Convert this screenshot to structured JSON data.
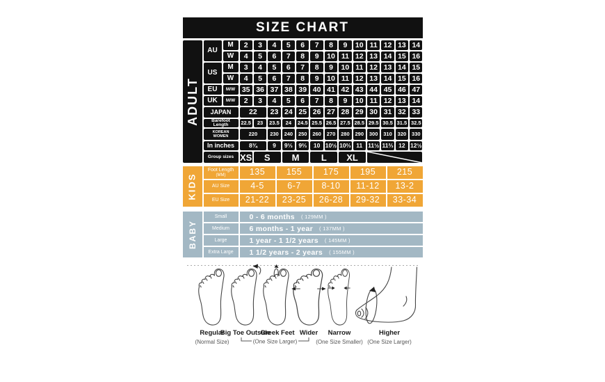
{
  "title": "SIZE CHART",
  "colors": {
    "table-black": "#111111",
    "kids-orange": "#f0a636",
    "baby-blue": "#a3b8c4"
  },
  "adult": {
    "section_label": "ADULT",
    "labels": {
      "au": "AU",
      "us": "US",
      "eu": "EU",
      "uk": "UK",
      "m": "M",
      "w": "W",
      "mw": "M/W",
      "japan": "JAPAN",
      "barefoot": "Barefoot Length",
      "korean_line1": "KOREAN",
      "korean_line2": "WOMEN",
      "inches": "In inches",
      "groups": "Group sizes"
    },
    "au_m": [
      "2",
      "3",
      "4",
      "5",
      "6",
      "7",
      "8",
      "9",
      "10",
      "11",
      "12",
      "13",
      "14"
    ],
    "au_w": [
      "4",
      "5",
      "6",
      "7",
      "8",
      "9",
      "10",
      "11",
      "12",
      "13",
      "14",
      "15",
      "16"
    ],
    "us_m": [
      "3",
      "4",
      "5",
      "6",
      "7",
      "8",
      "9",
      "10",
      "11",
      "12",
      "13",
      "14",
      "15"
    ],
    "us_w": [
      "4",
      "5",
      "6",
      "7",
      "8",
      "9",
      "10",
      "11",
      "12",
      "13",
      "14",
      "15",
      "16"
    ],
    "eu": [
      "35",
      "36",
      "37",
      "38",
      "39",
      "40",
      "41",
      "42",
      "43",
      "44",
      "45",
      "46",
      "47"
    ],
    "uk": [
      "2",
      "3",
      "4",
      "5",
      "6",
      "7",
      "8",
      "9",
      "10",
      "11",
      "12",
      "13",
      "14"
    ],
    "japan": [
      {
        "v": "22",
        "span": 2
      },
      "23",
      "24",
      "25",
      "26",
      "27",
      "28",
      "29",
      "30",
      "31",
      "32",
      "33"
    ],
    "barefoot": [
      "22.5",
      "23",
      "23.5",
      "24",
      "24.5",
      "25.5",
      "26.5",
      "27.5",
      "28.5",
      "29.5",
      "30.5",
      "31.5",
      "32.5"
    ],
    "korean": [
      {
        "v": "220",
        "span": 2
      },
      "230",
      "240",
      "250",
      "260",
      "270",
      "280",
      "290",
      "300",
      "310",
      "320",
      "330"
    ],
    "inches": [
      {
        "v": "8¾",
        "span": 2
      },
      "9",
      "9⅓",
      "9⅔",
      "10",
      "10½",
      "10⅔",
      "11",
      "11½",
      "11⅔",
      "12",
      "12½"
    ],
    "groups": [
      {
        "v": "XS",
        "span": 1
      },
      {
        "v": "S",
        "span": 2
      },
      {
        "v": "M",
        "span": 2
      },
      {
        "v": "L",
        "span": 2
      },
      {
        "v": "XL",
        "span": 2
      }
    ]
  },
  "kids": {
    "section_label": "KIDS",
    "row_labels": [
      {
        "label": "Foot Length",
        "sub": "(MM)"
      },
      {
        "label": "AU Size"
      },
      {
        "label": "EU Size"
      }
    ],
    "foot_length": [
      "135",
      "155",
      "175",
      "195",
      "215"
    ],
    "au_size": [
      "4-5",
      "6-7",
      "8-10",
      "11-12",
      "13-2"
    ],
    "eu_size": [
      "21-22",
      "23-25",
      "26-28",
      "29-32",
      "33-34"
    ]
  },
  "baby": {
    "section_label": "BABY",
    "rows": [
      {
        "label": "Small",
        "text": "0 - 6 months",
        "mm": "( 129MM )"
      },
      {
        "label": "Medium",
        "text": "6 months - 1 year",
        "mm": "( 137MM )"
      },
      {
        "label": "Large",
        "text": "1 year - 1 1/2 years",
        "mm": "( 145MM )"
      },
      {
        "label": "Extra Large",
        "text": "1 1/2 years - 2 years",
        "mm": "( 155MM )"
      }
    ]
  },
  "feet": {
    "items": [
      {
        "label": "Regular",
        "sub": "(Normal Size)"
      },
      {
        "label": "Big Toe Outside",
        "sub": ""
      },
      {
        "label": "Greek Feet",
        "sub": ""
      },
      {
        "label": "Wider",
        "sub": ""
      },
      {
        "label": "Narrow",
        "sub": "(One Size Smaller)"
      },
      {
        "label": "Higher",
        "sub": "(One Size Larger)"
      }
    ],
    "bracket_label": "(One Size Larger)"
  }
}
